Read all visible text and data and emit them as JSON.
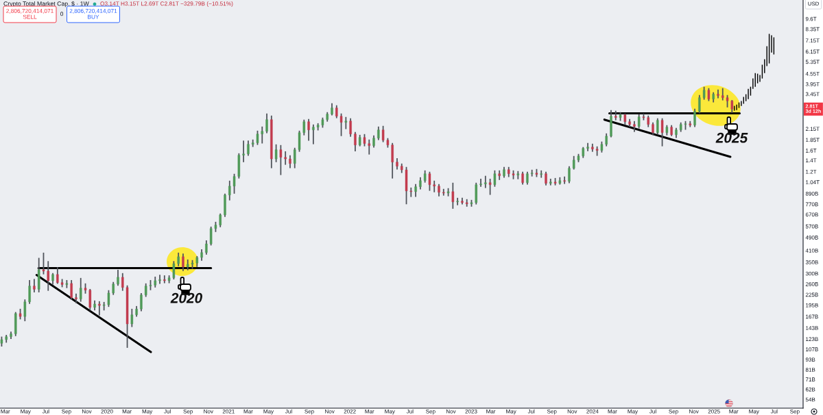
{
  "chart_data": {
    "type": "candlestick",
    "title": "Crypto Total Market Cap, $ · 1W",
    "log": true,
    "xlim": [
      "2019-02-13",
      "2025-09-26"
    ],
    "ylim": [
      48000000000.0,
      12400000000000.0
    ],
    "xticks": [
      {
        "value": "2019-03",
        "label": "Mar"
      },
      {
        "value": "2019-05",
        "label": "May"
      },
      {
        "value": "2019-07",
        "label": "Jul"
      },
      {
        "value": "2019-09",
        "label": "Sep"
      },
      {
        "value": "2019-11",
        "label": "Nov"
      },
      {
        "value": "2020-01",
        "label": "2020"
      },
      {
        "value": "2020-03",
        "label": "Mar"
      },
      {
        "value": "2020-05",
        "label": "May"
      },
      {
        "value": "2020-07",
        "label": "Jul"
      },
      {
        "value": "2020-09",
        "label": "Sep"
      },
      {
        "value": "2020-11",
        "label": "Nov"
      },
      {
        "value": "2021-01",
        "label": "2021"
      },
      {
        "value": "2021-03",
        "label": "Mar"
      },
      {
        "value": "2021-05",
        "label": "May"
      },
      {
        "value": "2021-07",
        "label": "Jul"
      },
      {
        "value": "2021-09",
        "label": "Sep"
      },
      {
        "value": "2021-11",
        "label": "Nov"
      },
      {
        "value": "2022-01",
        "label": "2022"
      },
      {
        "value": "2022-03",
        "label": "Mar"
      },
      {
        "value": "2022-05",
        "label": "May"
      },
      {
        "value": "2022-07",
        "label": "Jul"
      },
      {
        "value": "2022-09",
        "label": "Sep"
      },
      {
        "value": "2022-11",
        "label": "Nov"
      },
      {
        "value": "2023-01",
        "label": "2023"
      },
      {
        "value": "2023-03",
        "label": "Mar"
      },
      {
        "value": "2023-05",
        "label": "May"
      },
      {
        "value": "2023-07",
        "label": "Jul"
      },
      {
        "value": "2023-09",
        "label": "Sep"
      },
      {
        "value": "2023-11",
        "label": "Nov"
      },
      {
        "value": "2024-01",
        "label": "2024"
      },
      {
        "value": "2024-03",
        "label": "Mar"
      },
      {
        "value": "2024-05",
        "label": "May"
      },
      {
        "value": "2024-07",
        "label": "Jul"
      },
      {
        "value": "2024-09",
        "label": "Sep"
      },
      {
        "value": "2024-11",
        "label": "Nov"
      },
      {
        "value": "2025-01",
        "label": "2025"
      },
      {
        "value": "2025-03",
        "label": "Mar"
      },
      {
        "value": "2025-05",
        "label": "May"
      },
      {
        "value": "2025-07",
        "label": "Jul"
      },
      {
        "value": "2025-09",
        "label": "Sep"
      }
    ],
    "yticks": [
      {
        "value": 54000000000.0,
        "label": "54B"
      },
      {
        "value": 62000000000.0,
        "label": "62B"
      },
      {
        "value": 71000000000.0,
        "label": "71B"
      },
      {
        "value": 81000000000.0,
        "label": "81B"
      },
      {
        "value": 93000000000.0,
        "label": "93B"
      },
      {
        "value": 107000000000.0,
        "label": "107B"
      },
      {
        "value": 123000000000.0,
        "label": "123B"
      },
      {
        "value": 143000000000.0,
        "label": "143B"
      },
      {
        "value": 167000000000.0,
        "label": "167B"
      },
      {
        "value": 195000000000.0,
        "label": "195B"
      },
      {
        "value": 225000000000.0,
        "label": "225B"
      },
      {
        "value": 260000000000.0,
        "label": "260B"
      },
      {
        "value": 300000000000.0,
        "label": "300B"
      },
      {
        "value": 350000000000.0,
        "label": "350B"
      },
      {
        "value": 410000000000.0,
        "label": "410B"
      },
      {
        "value": 490000000000.0,
        "label": "490B"
      },
      {
        "value": 570000000000.0,
        "label": "570B"
      },
      {
        "value": 670000000000.0,
        "label": "670B"
      },
      {
        "value": 770000000000.0,
        "label": "770B"
      },
      {
        "value": 890000000000.0,
        "label": "890B"
      },
      {
        "value": 1040000000000.0,
        "label": "1.04T"
      },
      {
        "value": 1200000000000.0,
        "label": "1.2T"
      },
      {
        "value": 1400000000000.0,
        "label": "1.4T"
      },
      {
        "value": 1600000000000.0,
        "label": "1.6T"
      },
      {
        "value": 1850000000000.0,
        "label": "1.85T"
      },
      {
        "value": 2150000000000.0,
        "label": "2.15T"
      },
      {
        "value": 3450000000000.0,
        "label": "3.45T"
      },
      {
        "value": 3950000000000.0,
        "label": "3.95T"
      },
      {
        "value": 4550000000000.0,
        "label": "4.55T"
      },
      {
        "value": 5350000000000.0,
        "label": "5.35T"
      },
      {
        "value": 6150000000000.0,
        "label": "6.15T"
      },
      {
        "value": 7150000000000.0,
        "label": "7.15T"
      },
      {
        "value": 8350000000000.0,
        "label": "8.35T"
      },
      {
        "value": 9600000000000.0,
        "label": "9.6T"
      }
    ],
    "annotations": [
      "O3.14T H3.15T L2.69T C2.81T −329.79B (−10.51%)",
      "2,806,720,414,071\nSELL",
      "0",
      "2,806,720,414,071\nBUY",
      "USD",
      "2020",
      "2025",
      {
        "text": "2.81T\n3d 12h",
        "y": 2810000000000.0
      }
    ],
    "series": [
      {
        "color": "#4f9a58",
        "x": [
          "2019-02-18",
          "2019-03-04",
          "2019-03-18",
          "2019-04-01",
          "2019-04-29",
          "2019-05-13",
          "2019-06-10",
          "2019-07-22",
          "2019-09-02",
          "2019-10-14",
          "2019-11-25",
          "2019-12-23",
          "2020-01-06",
          "2020-01-20",
          "2020-02-03",
          "2020-03-16",
          "2020-03-30",
          "2020-04-13",
          "2020-04-27",
          "2020-05-11",
          "2020-05-25",
          "2020-06-08",
          "2020-07-06",
          "2020-07-20",
          "2020-08-03",
          "2020-08-31",
          "2020-09-14",
          "2020-09-28",
          "2020-10-12",
          "2020-10-26",
          "2020-11-09",
          "2020-11-23",
          "2020-12-07",
          "2020-12-21",
          "2021-01-04",
          "2021-01-18",
          "2021-02-01",
          "2021-02-15",
          "2021-03-01",
          "2021-03-15",
          "2021-03-29",
          "2021-04-12",
          "2021-04-26",
          "2021-05-24",
          "2021-07-19",
          "2021-08-02",
          "2021-08-16",
          "2021-09-13",
          "2021-09-27",
          "2021-10-11",
          "2021-10-25",
          "2021-11-08",
          "2021-12-20",
          "2022-01-31",
          "2022-03-14",
          "2022-03-28",
          "2022-07-18",
          "2022-08-01",
          "2022-08-15",
          "2022-10-24",
          "2022-11-21",
          "2023-01-02",
          "2023-01-16",
          "2023-01-30",
          "2023-02-13",
          "2023-03-13",
          "2023-04-10",
          "2023-05-22",
          "2023-06-19",
          "2023-07-03",
          "2023-07-31",
          "2023-08-28",
          "2023-09-25",
          "2023-10-23",
          "2023-11-06",
          "2023-11-20",
          "2023-12-04",
          "2023-12-18",
          "2024-01-29",
          "2024-02-12",
          "2024-02-26",
          "2024-03-25",
          "2024-05-20",
          "2024-07-15",
          "2024-08-12",
          "2024-09-09",
          "2024-09-23",
          "2024-10-07",
          "2024-11-04",
          "2024-11-18",
          "2024-12-02",
          "2024-12-30"
        ],
        "ohlc": [
          [
            116000000000.0,
            126000000000.0,
            112000000000.0,
            122000000000.0
          ],
          [
            122000000000.0,
            129000000000.0,
            118000000000.0,
            127000000000.0
          ],
          [
            127000000000.0,
            135000000000.0,
            124000000000.0,
            132000000000.0
          ],
          [
            132000000000.0,
            176000000000.0,
            129000000000.0,
            174000000000.0
          ],
          [
            167000000000.0,
            209000000000.0,
            158000000000.0,
            204000000000.0
          ],
          [
            204000000000.0,
            272000000000.0,
            200000000000.0,
            253000000000.0
          ],
          [
            242000000000.0,
            368000000000.0,
            234000000000.0,
            316000000000.0
          ],
          [
            272000000000.0,
            299000000000.0,
            260000000000.0,
            296000000000.0
          ],
          [
            258000000000.0,
            272000000000.0,
            248000000000.0,
            262000000000.0
          ],
          [
            212000000000.0,
            280000000000.0,
            206000000000.0,
            246000000000.0
          ],
          [
            189000000000.0,
            206000000000.0,
            183000000000.0,
            198000000000.0
          ],
          [
            194000000000.0,
            202000000000.0,
            183000000000.0,
            196000000000.0
          ],
          [
            196000000000.0,
            237000000000.0,
            192000000000.0,
            230000000000.0
          ],
          [
            230000000000.0,
            265000000000.0,
            226000000000.0,
            260000000000.0
          ],
          [
            260000000000.0,
            313000000000.0,
            256000000000.0,
            285000000000.0
          ],
          [
            151000000000.0,
            184000000000.0,
            146000000000.0,
            171000000000.0
          ],
          [
            171000000000.0,
            191000000000.0,
            168000000000.0,
            185000000000.0
          ],
          [
            185000000000.0,
            228000000000.0,
            181000000000.0,
            224000000000.0
          ],
          [
            224000000000.0,
            260000000000.0,
            220000000000.0,
            253000000000.0
          ],
          [
            253000000000.0,
            272000000000.0,
            241000000000.0,
            256000000000.0
          ],
          [
            256000000000.0,
            285000000000.0,
            250000000000.0,
            272000000000.0
          ],
          [
            272000000000.0,
            292000000000.0,
            263000000000.0,
            276000000000.0
          ],
          [
            272000000000.0,
            290000000000.0,
            265000000000.0,
            283000000000.0
          ],
          [
            283000000000.0,
            352000000000.0,
            279000000000.0,
            343000000000.0
          ],
          [
            343000000000.0,
            395000000000.0,
            334000000000.0,
            377000000000.0
          ],
          [
            328000000000.0,
            360000000000.0,
            316000000000.0,
            340000000000.0
          ],
          [
            340000000000.0,
            357000000000.0,
            322000000000.0,
            346000000000.0
          ],
          [
            346000000000.0,
            377000000000.0,
            331000000000.0,
            373000000000.0
          ],
          [
            373000000000.0,
            414000000000.0,
            360000000000.0,
            399000000000.0
          ],
          [
            399000000000.0,
            467000000000.0,
            391000000000.0,
            449000000000.0
          ],
          [
            449000000000.0,
            563000000000.0,
            443000000000.0,
            553000000000.0
          ],
          [
            553000000000.0,
            601000000000.0,
            532000000000.0,
            580000000000.0
          ],
          [
            580000000000.0,
            673000000000.0,
            568000000000.0,
            666000000000.0
          ],
          [
            666000000000.0,
            881000000000.0,
            654000000000.0,
            873000000000.0
          ],
          [
            873000000000.0,
            1052000000000.0,
            818000000000.0,
            985000000000.0
          ],
          [
            985000000000.0,
            1155000000000.0,
            896000000000.0,
            1124000000000.0
          ],
          [
            1124000000000.0,
            1527000000000.0,
            1102000000000.0,
            1500000000000.0
          ],
          [
            1500000000000.0,
            1815000000000.0,
            1376000000000.0,
            1527000000000.0
          ],
          [
            1527000000000.0,
            1815000000000.0,
            1500000000000.0,
            1740000000000.0
          ],
          [
            1740000000000.0,
            1841000000000.0,
            1693000000000.0,
            1775000000000.0
          ],
          [
            1775000000000.0,
            2077000000000.0,
            1740000000000.0,
            2002000000000.0
          ],
          [
            2002000000000.0,
            2197000000000.0,
            1775000000000.0,
            2078000000000.0
          ],
          [
            2078000000000.0,
            2625000000000.0,
            2040000000000.0,
            2435000000000.0
          ],
          [
            1426000000000.0,
            1724000000000.0,
            1376000000000.0,
            1617000000000.0
          ],
          [
            1340000000000.0,
            1646000000000.0,
            1268000000000.0,
            1617000000000.0
          ],
          [
            1617000000000.0,
            2077000000000.0,
            1585000000000.0,
            2040000000000.0
          ],
          [
            2040000000000.0,
            2413000000000.0,
            1983000000000.0,
            2367000000000.0
          ],
          [
            2117000000000.0,
            2260000000000.0,
            1757000000000.0,
            2198000000000.0
          ],
          [
            2198000000000.0,
            2300000000000.0,
            2120000000000.0,
            2260000000000.0
          ],
          [
            2260000000000.0,
            2481000000000.0,
            2200000000000.0,
            2435000000000.0
          ],
          [
            2435000000000.0,
            2673000000000.0,
            2389000000000.0,
            2625000000000.0
          ],
          [
            2625000000000.0,
            3018000000000.0,
            2600000000000.0,
            2855000000000.0
          ],
          [
            2345000000000.0,
            2504000000000.0,
            2158000000000.0,
            2389000000000.0
          ],
          [
            1724000000000.0,
            1963000000000.0,
            1708000000000.0,
            1911000000000.0
          ],
          [
            1708000000000.0,
            1945000000000.0,
            1677000000000.0,
            1893000000000.0
          ],
          [
            1893000000000.0,
            2197000000000.0,
            1859000000000.0,
            2117000000000.0
          ],
          [
            914000000000.0,
            1004000000000.0,
            857000000000.0,
            977000000000.0
          ],
          [
            977000000000.0,
            1102000000000.0,
            950000000000.0,
            1062000000000.0
          ],
          [
            1062000000000.0,
            1210000000000.0,
            1042000000000.0,
            1166000000000.0
          ],
          [
            896000000000.0,
            950000000000.0,
            865000000000.0,
            914000000000.0
          ],
          [
            795000000000.0,
            833000000000.0,
            766000000000.0,
            803000000000.0
          ],
          [
            774000000000.0,
            810000000000.0,
            751000000000.0,
            787000000000.0
          ],
          [
            787000000000.0,
            1023000000000.0,
            774000000000.0,
            1004000000000.0
          ],
          [
            1004000000000.0,
            1080000000000.0,
            985000000000.0,
            1014000000000.0
          ],
          [
            1014000000000.0,
            1124000000000.0,
            968000000000.0,
            1033000000000.0
          ],
          [
            1004000000000.0,
            1210000000000.0,
            985000000000.0,
            1166000000000.0
          ],
          [
            1133000000000.0,
            1268000000000.0,
            1113000000000.0,
            1233000000000.0
          ],
          [
            1144000000000.0,
            1199000000000.0,
            1091000000000.0,
            1166000000000.0
          ],
          [
            1033000000000.0,
            1188000000000.0,
            1014000000000.0,
            1166000000000.0
          ],
          [
            1166000000000.0,
            1221000000000.0,
            1133000000000.0,
            1177000000000.0
          ],
          [
            1155000000000.0,
            1210000000000.0,
            1113000000000.0,
            1166000000000.0
          ],
          [
            1023000000000.0,
            1080000000000.0,
            1004000000000.0,
            1042000000000.0
          ],
          [
            1023000000000.0,
            1102000000000.0,
            1014000000000.0,
            1062000000000.0
          ],
          [
            1052000000000.0,
            1280000000000.0,
            1033000000000.0,
            1256000000000.0
          ],
          [
            1256000000000.0,
            1472000000000.0,
            1245000000000.0,
            1404000000000.0
          ],
          [
            1404000000000.0,
            1514000000000.0,
            1376000000000.0,
            1485000000000.0
          ],
          [
            1485000000000.0,
            1662000000000.0,
            1458000000000.0,
            1646000000000.0
          ],
          [
            1646000000000.0,
            1757000000000.0,
            1600000000000.0,
            1677000000000.0
          ],
          [
            1600000000000.0,
            1791000000000.0,
            1569000000000.0,
            1740000000000.0
          ],
          [
            1740000000000.0,
            2002000000000.0,
            1708000000000.0,
            1945000000000.0
          ],
          [
            1945000000000.0,
            2752000000000.0,
            1929000000000.0,
            2551000000000.0
          ],
          [
            2504000000000.0,
            2673000000000.0,
            2413000000000.0,
            2600000000000.0
          ],
          [
            2218000000000.0,
            2600000000000.0,
            2178000000000.0,
            2528000000000.0
          ],
          [
            2040000000000.0,
            2459000000000.0,
            2002000000000.0,
            2413000000000.0
          ],
          [
            2040000000000.0,
            2240000000000.0,
            1983000000000.0,
            2198000000000.0
          ],
          [
            1983000000000.0,
            2158000000000.0,
            1911000000000.0,
            2117000000000.0
          ],
          [
            2117000000000.0,
            2324000000000.0,
            2078000000000.0,
            2281000000000.0
          ],
          [
            2281000000000.0,
            2367000000000.0,
            2138000000000.0,
            2302000000000.0
          ],
          [
            2260000000000.0,
            2801000000000.0,
            2218000000000.0,
            2725000000000.0
          ],
          [
            2725000000000.0,
            3375000000000.0,
            2673000000000.0,
            3283000000000.0
          ],
          [
            3283000000000.0,
            3775000000000.0,
            3221000000000.0,
            3635000000000.0
          ],
          [
            3221000000000.0,
            3503000000000.0,
            3104000000000.0,
            3443000000000.0
          ]
        ]
      },
      {
        "color": "#c23b4e",
        "x": [
          "2019-04-15",
          "2019-05-27",
          "2019-06-24",
          "2019-07-08",
          "2019-08-05",
          "2019-08-19",
          "2019-09-16",
          "2019-09-30",
          "2019-10-28",
          "2019-11-11",
          "2019-12-09",
          "2020-02-17",
          "2020-03-02",
          "2020-06-22",
          "2020-08-17",
          "2021-05-10",
          "2021-06-07",
          "2021-06-21",
          "2021-07-05",
          "2021-08-30",
          "2021-11-22",
          "2021-12-06",
          "2022-01-03",
          "2022-01-17",
          "2022-02-14",
          "2022-02-28",
          "2022-04-11",
          "2022-04-25",
          "2022-05-09",
          "2022-05-23",
          "2022-06-06",
          "2022-06-20",
          "2022-07-04",
          "2022-08-29",
          "2022-09-12",
          "2022-09-26",
          "2022-10-10",
          "2022-11-07",
          "2022-12-05",
          "2022-12-19",
          "2023-02-27",
          "2023-03-27",
          "2023-04-24",
          "2023-05-08",
          "2023-06-05",
          "2023-07-17",
          "2023-08-14",
          "2023-09-11",
          "2023-10-09",
          "2024-01-01",
          "2024-01-15",
          "2024-03-11",
          "2024-04-08",
          "2024-04-22",
          "2024-05-06",
          "2024-06-03",
          "2024-06-17",
          "2024-07-01",
          "2024-07-29",
          "2024-08-26",
          "2024-10-21",
          "2024-12-16",
          "2025-01-13",
          "2025-01-27",
          "2025-02-10",
          "2025-02-24"
        ],
        "ohlc": [
          [
            174000000000.0,
            184000000000.0,
            162000000000.0,
            167000000000.0
          ],
          [
            253000000000.0,
            276000000000.0,
            234000000000.0,
            242000000000.0
          ],
          [
            316000000000.0,
            395000000000.0,
            299000000000.0,
            310000000000.0
          ],
          [
            310000000000.0,
            352000000000.0,
            239000000000.0,
            272000000000.0
          ],
          [
            296000000000.0,
            324000000000.0,
            263000000000.0,
            265000000000.0
          ],
          [
            265000000000.0,
            276000000000.0,
            251000000000.0,
            258000000000.0
          ],
          [
            262000000000.0,
            272000000000.0,
            211000000000.0,
            216000000000.0
          ],
          [
            216000000000.0,
            226000000000.0,
            202000000000.0,
            212000000000.0
          ],
          [
            246000000000.0,
            260000000000.0,
            230000000000.0,
            239000000000.0
          ],
          [
            239000000000.0,
            241000000000.0,
            183000000000.0,
            189000000000.0
          ],
          [
            198000000000.0,
            204000000000.0,
            171000000000.0,
            194000000000.0
          ],
          [
            285000000000.0,
            299000000000.0,
            239000000000.0,
            248000000000.0
          ],
          [
            248000000000.0,
            253000000000.0,
            110000000000.0,
            151000000000.0
          ],
          [
            276000000000.0,
            290000000000.0,
            265000000000.0,
            272000000000.0
          ],
          [
            377000000000.0,
            390000000000.0,
            313000000000.0,
            328000000000.0
          ],
          [
            2435000000000.0,
            2551000000000.0,
            1268000000000.0,
            1426000000000.0
          ],
          [
            1617000000000.0,
            1708000000000.0,
            1155000000000.0,
            1458000000000.0
          ],
          [
            1458000000000.0,
            1569000000000.0,
            1328000000000.0,
            1426000000000.0
          ],
          [
            1426000000000.0,
            1485000000000.0,
            1268000000000.0,
            1340000000000.0
          ],
          [
            2367000000000.0,
            2435000000000.0,
            1841000000000.0,
            2117000000000.0
          ],
          [
            2855000000000.0,
            2935000000000.0,
            2504000000000.0,
            2551000000000.0
          ],
          [
            2551000000000.0,
            2625000000000.0,
            1963000000000.0,
            2345000000000.0
          ],
          [
            2389000000000.0,
            2459000000000.0,
            1945000000000.0,
            2002000000000.0
          ],
          [
            2002000000000.0,
            2040000000000.0,
            1594000000000.0,
            1724000000000.0
          ],
          [
            1911000000000.0,
            1983000000000.0,
            1708000000000.0,
            1757000000000.0
          ],
          [
            1757000000000.0,
            1841000000000.0,
            1527000000000.0,
            1708000000000.0
          ],
          [
            2117000000000.0,
            2218000000000.0,
            1807000000000.0,
            1841000000000.0
          ],
          [
            1841000000000.0,
            1877000000000.0,
            1677000000000.0,
            1724000000000.0
          ],
          [
            1724000000000.0,
            1757000000000.0,
            1102000000000.0,
            1366000000000.0
          ],
          [
            1366000000000.0,
            1430000000000.0,
            1245000000000.0,
            1292000000000.0
          ],
          [
            1292000000000.0,
            1328000000000.0,
            1188000000000.0,
            1229000000000.0
          ],
          [
            1229000000000.0,
            1268000000000.0,
            776000000000.0,
            922000000000.0
          ],
          [
            922000000000.0,
            958000000000.0,
            857000000000.0,
            914000000000.0
          ],
          [
            1166000000000.0,
            1188000000000.0,
            932000000000.0,
            1004000000000.0
          ],
          [
            1004000000000.0,
            1052000000000.0,
            914000000000.0,
            985000000000.0
          ],
          [
            985000000000.0,
            1004000000000.0,
            865000000000.0,
            905000000000.0
          ],
          [
            905000000000.0,
            941000000000.0,
            873000000000.0,
            896000000000.0
          ],
          [
            914000000000.0,
            1023000000000.0,
            730000000000.0,
            795000000000.0
          ],
          [
            803000000000.0,
            833000000000.0,
            774000000000.0,
            787000000000.0
          ],
          [
            787000000000.0,
            818000000000.0,
            751000000000.0,
            774000000000.0
          ],
          [
            1033000000000.0,
            1080000000000.0,
            882000000000.0,
            1004000000000.0
          ],
          [
            1166000000000.0,
            1210000000000.0,
            1080000000000.0,
            1133000000000.0
          ],
          [
            1233000000000.0,
            1268000000000.0,
            1124000000000.0,
            1166000000000.0
          ],
          [
            1166000000000.0,
            1210000000000.0,
            1091000000000.0,
            1144000000000.0
          ],
          [
            1166000000000.0,
            1188000000000.0,
            1014000000000.0,
            1033000000000.0
          ],
          [
            1177000000000.0,
            1233000000000.0,
            1124000000000.0,
            1155000000000.0
          ],
          [
            1166000000000.0,
            1188000000000.0,
            1004000000000.0,
            1023000000000.0
          ],
          [
            1042000000000.0,
            1091000000000.0,
            1004000000000.0,
            1023000000000.0
          ],
          [
            1062000000000.0,
            1113000000000.0,
            1023000000000.0,
            1052000000000.0
          ],
          [
            1677000000000.0,
            1740000000000.0,
            1585000000000.0,
            1630000000000.0
          ],
          [
            1630000000000.0,
            1677000000000.0,
            1500000000000.0,
            1600000000000.0
          ],
          [
            2551000000000.0,
            2725000000000.0,
            2435000000000.0,
            2504000000000.0
          ],
          [
            2600000000000.0,
            2625000000000.0,
            2281000000000.0,
            2367000000000.0
          ],
          [
            2367000000000.0,
            2435000000000.0,
            2218000000000.0,
            2281000000000.0
          ],
          [
            2281000000000.0,
            2367000000000.0,
            2077000000000.0,
            2218000000000.0
          ],
          [
            2528000000000.0,
            2625000000000.0,
            2435000000000.0,
            2504000000000.0
          ],
          [
            2504000000000.0,
            2551000000000.0,
            2218000000000.0,
            2281000000000.0
          ],
          [
            2281000000000.0,
            2324000000000.0,
            1983000000000.0,
            2040000000000.0
          ],
          [
            2413000000000.0,
            2459000000000.0,
            1708000000000.0,
            2040000000000.0
          ],
          [
            2198000000000.0,
            2240000000000.0,
            1963000000000.0,
            1983000000000.0
          ],
          [
            2302000000000.0,
            2367000000000.0,
            2218000000000.0,
            2260000000000.0
          ],
          [
            3635000000000.0,
            3705000000000.0,
            3160000000000.0,
            3221000000000.0
          ],
          [
            3443000000000.0,
            3635000000000.0,
            3283000000000.0,
            3375000000000.0
          ],
          [
            3375000000000.0,
            3705000000000.0,
            3191000000000.0,
            3283000000000.0
          ],
          [
            3283000000000.0,
            3375000000000.0,
            2900000000000.0,
            3140000000000.0
          ],
          [
            3140000000000.0,
            3150000000000.0,
            2690000000000.0,
            2810000000000.0
          ]
        ]
      },
      {
        "type": "bar",
        "color": "#000000",
        "x": [
          "2025-03-03",
          "2025-03-10",
          "2025-03-17",
          "2025-03-24",
          "2025-03-31",
          "2025-04-07",
          "2025-04-14",
          "2025-04-21",
          "2025-04-28",
          "2025-05-05",
          "2025-05-12",
          "2025-05-19",
          "2025-05-26",
          "2025-06-02",
          "2025-06-09",
          "2025-06-16",
          "2025-06-23",
          "2025-06-30"
        ],
        "base": [
          2750000000000.0,
          2775000000000.0,
          2855000000000.0,
          2935000000000.0,
          3020000000000.0,
          3130000000000.0,
          3220000000000.0,
          3375000000000.0,
          3705000000000.0,
          3810000000000.0,
          3990000000000.0,
          4070000000000.0,
          4260000000000.0,
          4590000000000.0,
          5040000000000.0,
          5230000000000.0,
          6070000000000.0,
          5910000000000.0
        ],
        "values": [
          185000000000.0,
          215000000000.0,
          220000000000.0,
          200000000000.0,
          300000000000.0,
          310000000000.0,
          485000000000.0,
          435000000000.0,
          560000000000.0,
          780000000000.0,
          560000000000.0,
          400000000000.0,
          880000000000.0,
          950000000000.0,
          1570000000000.0,
          2590000000000.0,
          1600000000000.0,
          1550000000000.0
        ]
      },
      {
        "type": "line",
        "color": "#000000",
        "x": [
          "2019-06-09",
          "2020-11-09"
        ],
        "values": [
          323000000000.0,
          323000000000.0
        ]
      },
      {
        "type": "line",
        "color": "#000000",
        "x": [
          "2019-06-03",
          "2020-05-12"
        ],
        "values": [
          294000000000.0,
          103000000000.0
        ]
      },
      {
        "type": "line",
        "color": "#000000",
        "x": [
          "2024-02-21",
          "2025-03-19"
        ],
        "values": [
          2650000000000.0,
          2650000000000.0
        ]
      },
      {
        "type": "line",
        "color": "#000000",
        "x": [
          "2024-02-06",
          "2025-02-19"
        ],
        "values": [
          2435000000000.0,
          1467000000000.0
        ]
      }
    ]
  }
}
